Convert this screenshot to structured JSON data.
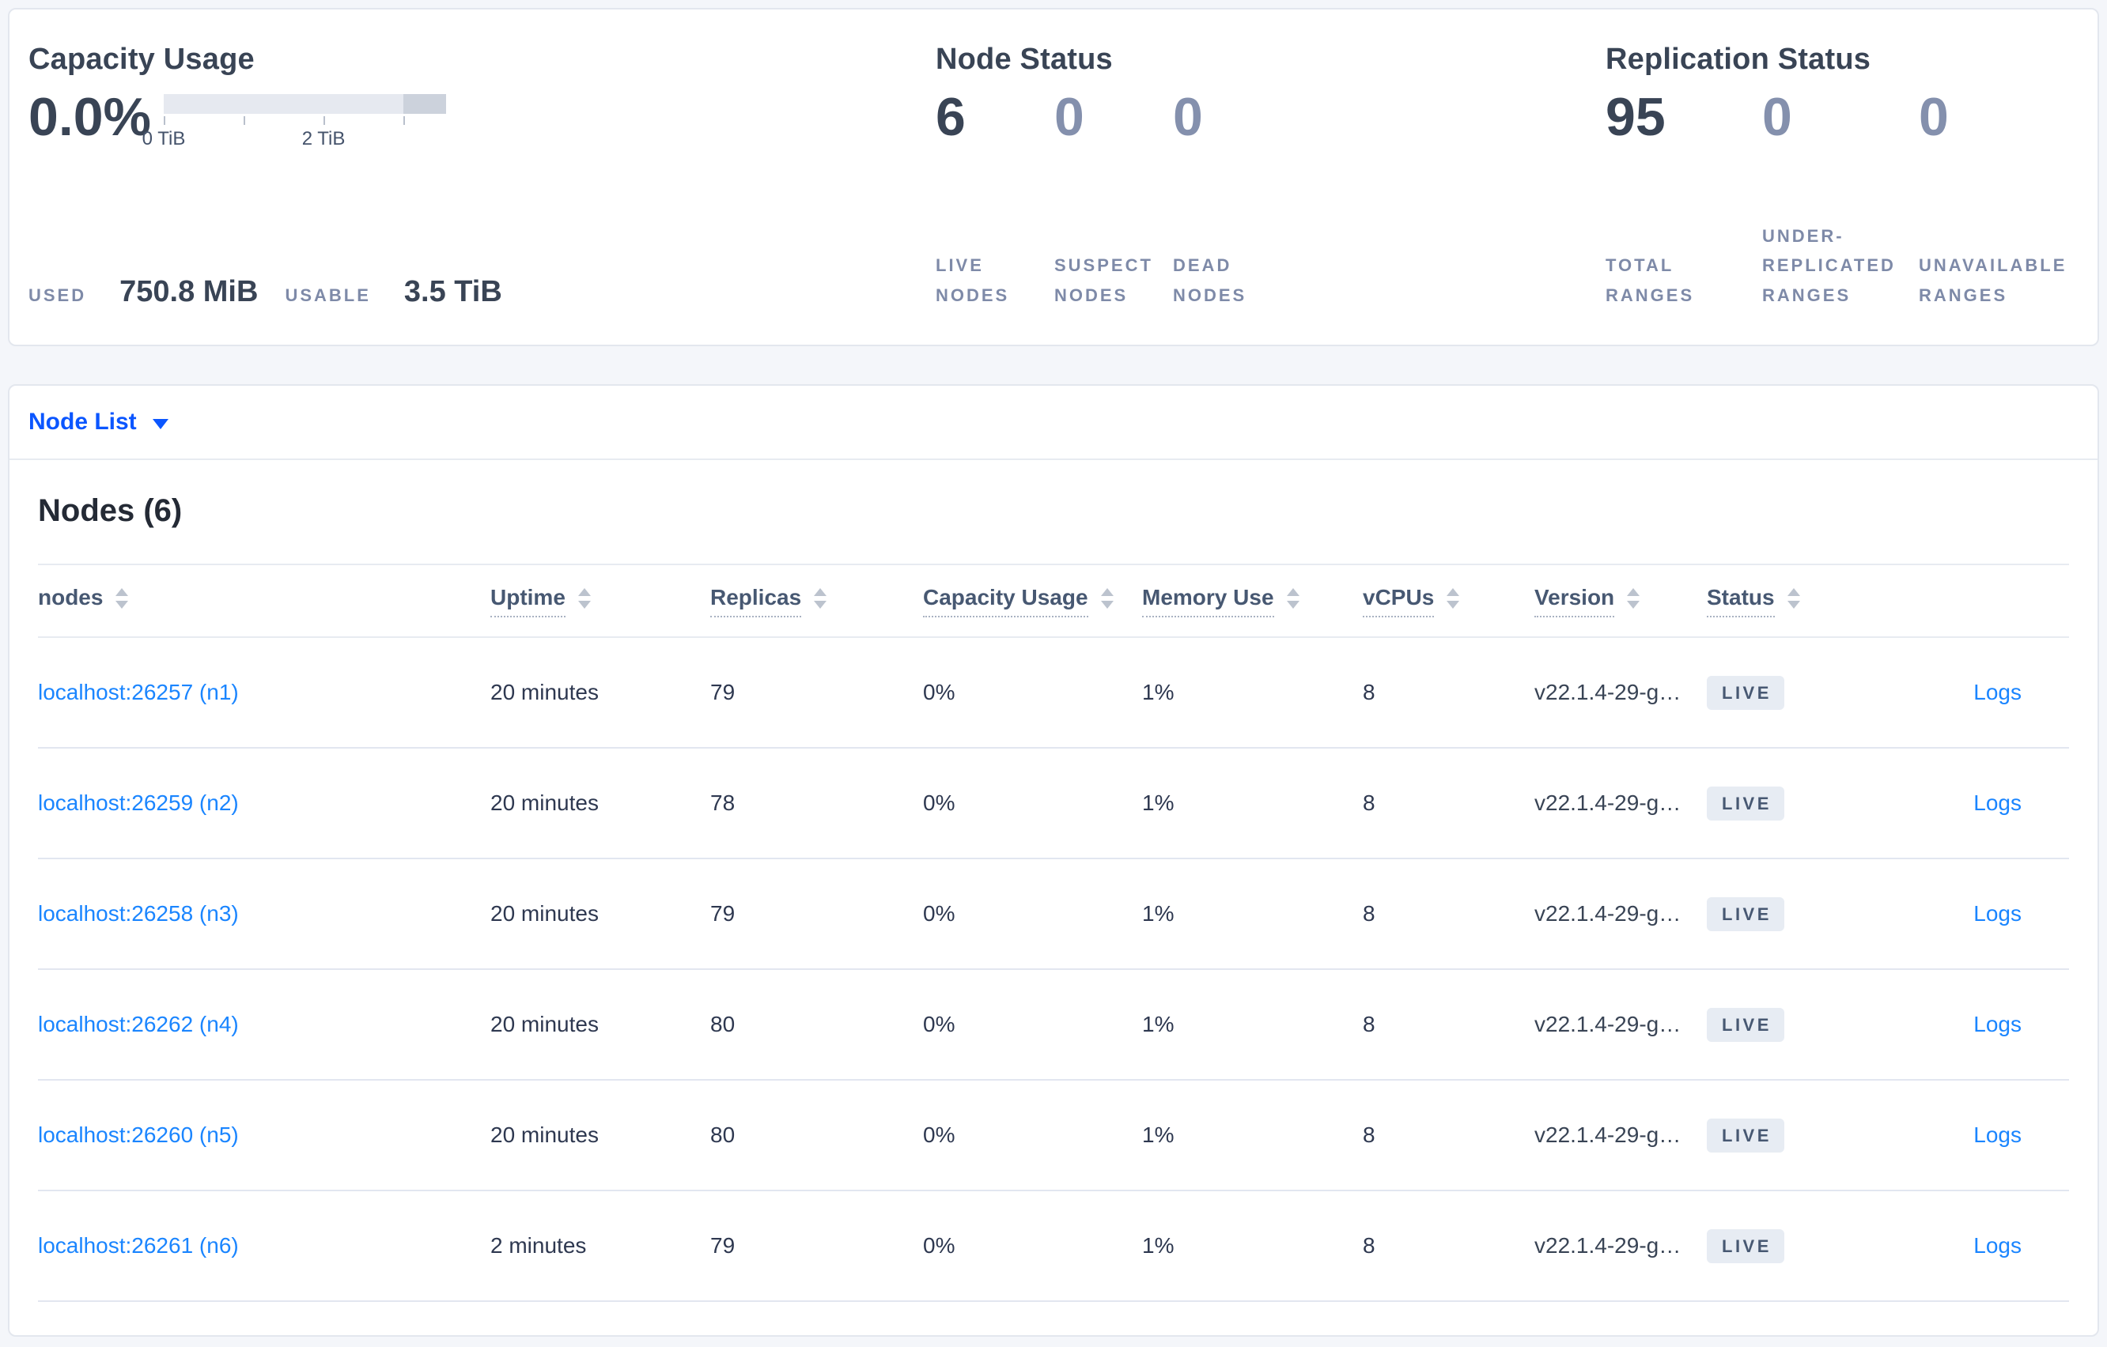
{
  "colors": {
    "link_blue": "#1a85ff",
    "dropdown_blue": "#0b56ff",
    "badge_bg": "#e7ecf3",
    "badge_text": "#475872",
    "number_dark": "#394455",
    "number_muted": "#8490ad"
  },
  "capacity_panel": {
    "title": "Capacity Usage",
    "percent": "0.0%",
    "axis_tick_0": "0 TiB",
    "axis_tick_2": "2 TiB",
    "used_label": "USED",
    "used_value": "750.8 MiB",
    "usable_label": "USABLE",
    "usable_value": "3.5 TiB"
  },
  "node_status_panel": {
    "title": "Node Status",
    "stats": [
      {
        "value": "6",
        "label": "LIVE NODES"
      },
      {
        "value": "0",
        "label": "SUSPECT NODES"
      },
      {
        "value": "0",
        "label": "DEAD NODES"
      }
    ]
  },
  "replication_panel": {
    "title": "Replication Status",
    "stats": [
      {
        "value": "95",
        "label": "TOTAL RANGES"
      },
      {
        "value": "0",
        "label": "UNDER-REPLICATED RANGES"
      },
      {
        "value": "0",
        "label": "UNAVAILABLE RANGES"
      }
    ]
  },
  "node_list": {
    "label": "Node List"
  },
  "nodes_table": {
    "title": "Nodes (6)",
    "columns": [
      {
        "label": "nodes"
      },
      {
        "label": "Uptime"
      },
      {
        "label": "Replicas"
      },
      {
        "label": "Capacity Usage"
      },
      {
        "label": "Memory Use"
      },
      {
        "label": "vCPUs"
      },
      {
        "label": "Version"
      },
      {
        "label": "Status"
      }
    ],
    "rows": [
      {
        "node": "localhost:26257 (n1)",
        "uptime": "20 minutes",
        "replicas": "79",
        "capacity_usage": "0%",
        "memory_use": "1%",
        "vcpus": "8",
        "version": "v22.1.4-29-g…",
        "status": "LIVE",
        "logs_label": "Logs"
      },
      {
        "node": "localhost:26259 (n2)",
        "uptime": "20 minutes",
        "replicas": "78",
        "capacity_usage": "0%",
        "memory_use": "1%",
        "vcpus": "8",
        "version": "v22.1.4-29-g…",
        "status": "LIVE",
        "logs_label": "Logs"
      },
      {
        "node": "localhost:26258 (n3)",
        "uptime": "20 minutes",
        "replicas": "79",
        "capacity_usage": "0%",
        "memory_use": "1%",
        "vcpus": "8",
        "version": "v22.1.4-29-g…",
        "status": "LIVE",
        "logs_label": "Logs"
      },
      {
        "node": "localhost:26262 (n4)",
        "uptime": "20 minutes",
        "replicas": "80",
        "capacity_usage": "0%",
        "memory_use": "1%",
        "vcpus": "8",
        "version": "v22.1.4-29-g…",
        "status": "LIVE",
        "logs_label": "Logs"
      },
      {
        "node": "localhost:26260 (n5)",
        "uptime": "20 minutes",
        "replicas": "80",
        "capacity_usage": "0%",
        "memory_use": "1%",
        "vcpus": "8",
        "version": "v22.1.4-29-g…",
        "status": "LIVE",
        "logs_label": "Logs"
      },
      {
        "node": "localhost:26261 (n6)",
        "uptime": "2 minutes",
        "replicas": "79",
        "capacity_usage": "0%",
        "memory_use": "1%",
        "vcpus": "8",
        "version": "v22.1.4-29-g…",
        "status": "LIVE",
        "logs_label": "Logs"
      }
    ]
  }
}
